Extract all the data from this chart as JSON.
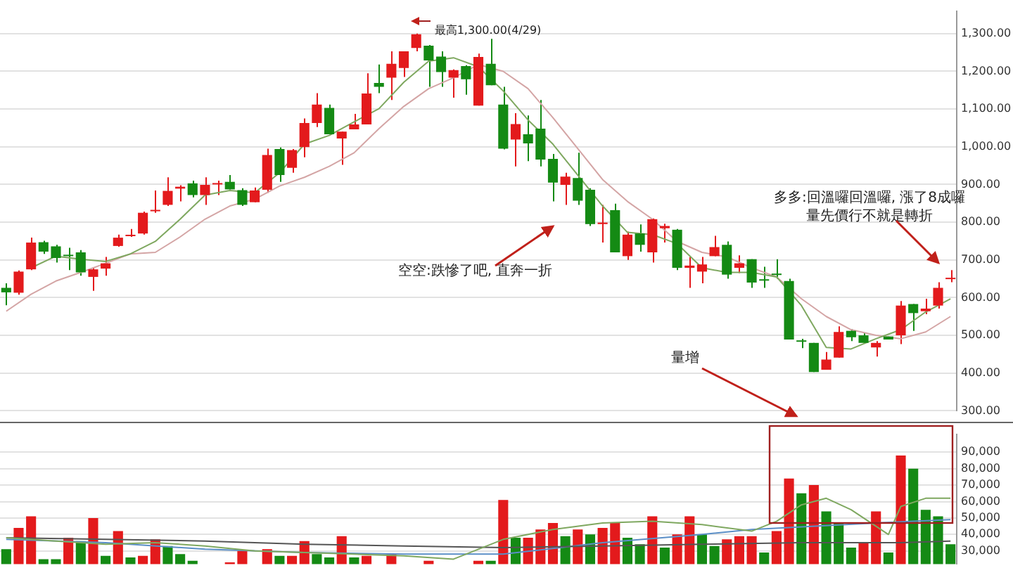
{
  "chart_data": [
    {
      "type": "candlestick",
      "tick_labels": "y",
      "grid": "y",
      "categories": [
        null,
        null,
        null,
        null,
        null,
        null,
        null,
        null,
        null,
        null,
        null,
        null,
        null,
        null,
        null,
        null,
        null,
        null,
        null,
        null,
        null,
        null,
        null,
        null,
        null,
        null,
        null,
        null,
        null,
        null,
        null,
        null,
        null,
        null,
        null,
        null,
        null,
        null,
        null,
        null,
        null,
        null,
        null,
        null,
        null,
        null,
        null,
        null,
        null,
        null,
        null,
        null,
        null,
        null,
        null,
        null,
        null,
        null,
        null,
        null,
        null,
        null,
        null,
        null,
        null,
        null,
        null,
        null,
        null,
        null,
        null,
        null,
        null,
        null,
        null,
        null,
        null
      ],
      "ohlc": [
        [
          626,
          638,
          580,
          614
        ],
        [
          613,
          672,
          608,
          669
        ],
        [
          675,
          759,
          673,
          746
        ],
        [
          747,
          751,
          716,
          722
        ],
        [
          736,
          740,
          693,
          705
        ],
        [
          712,
          732,
          673,
          710
        ],
        [
          720,
          726,
          658,
          667
        ],
        [
          655,
          680,
          618,
          675
        ],
        [
          677,
          708,
          658,
          691
        ],
        [
          737,
          767,
          735,
          759
        ],
        [
          763,
          782,
          761,
          764
        ],
        [
          770,
          828,
          767,
          825
        ],
        [
          829,
          884,
          825,
          831
        ],
        [
          846,
          919,
          843,
          883
        ],
        [
          889,
          898,
          855,
          894
        ],
        [
          903,
          910,
          866,
          872
        ],
        [
          872,
          919,
          846,
          899
        ],
        [
          900,
          910,
          872,
          902
        ],
        [
          907,
          925,
          887,
          887
        ],
        [
          885,
          890,
          843,
          846
        ],
        [
          853,
          892,
          853,
          884
        ],
        [
          886,
          995,
          878,
          978
        ],
        [
          994,
          998,
          907,
          925
        ],
        [
          944,
          994,
          931,
          991
        ],
        [
          999,
          1075,
          972,
          1063
        ],
        [
          1063,
          1142,
          1052,
          1112
        ],
        [
          1103,
          1112,
          1033,
          1033
        ],
        [
          1022,
          1040,
          952,
          1040
        ],
        [
          1046,
          1087,
          1046,
          1059
        ],
        [
          1059,
          1195,
          1059,
          1141
        ],
        [
          1169,
          1218,
          1142,
          1159
        ],
        [
          1183,
          1253,
          1124,
          1220
        ],
        [
          1209,
          1253,
          1185,
          1253
        ],
        [
          1262,
          1300,
          1253,
          1298
        ],
        [
          1268,
          1270,
          1159,
          1229
        ],
        [
          1239,
          1253,
          1159,
          1198
        ],
        [
          1183,
          1205,
          1130,
          1203
        ],
        [
          1214,
          1216,
          1138,
          1179
        ],
        [
          1109,
          1247,
          1109,
          1238
        ],
        [
          1220,
          1286,
          1163,
          1163
        ],
        [
          1112,
          1159,
          993,
          995
        ],
        [
          1019,
          1089,
          948,
          1060
        ],
        [
          1033,
          1083,
          962,
          1009
        ],
        [
          1048,
          1124,
          948,
          966
        ],
        [
          968,
          981,
          855,
          905
        ],
        [
          899,
          931,
          846,
          921
        ],
        [
          917,
          984,
          846,
          857
        ],
        [
          886,
          890,
          790,
          795
        ],
        [
          795,
          846,
          746,
          799
        ],
        [
          832,
          849,
          720,
          720
        ],
        [
          710,
          775,
          700,
          767
        ],
        [
          770,
          794,
          722,
          740
        ],
        [
          720,
          810,
          693,
          808
        ],
        [
          784,
          796,
          746,
          790
        ],
        [
          780,
          782,
          673,
          679
        ],
        [
          679,
          708,
          626,
          685
        ],
        [
          669,
          708,
          638,
          688
        ],
        [
          710,
          764,
          710,
          734
        ],
        [
          740,
          749,
          650,
          661
        ],
        [
          679,
          712,
          665,
          691
        ],
        [
          702,
          702,
          626,
          640
        ],
        [
          647,
          682,
          626,
          645
        ],
        [
          662,
          702,
          650,
          660
        ],
        [
          644,
          650,
          489,
          489
        ],
        [
          485,
          491,
          466,
          483
        ],
        [
          480,
          480,
          403,
          403
        ],
        [
          409,
          456,
          409,
          436
        ],
        [
          441,
          524,
          441,
          509
        ],
        [
          512,
          517,
          485,
          495
        ],
        [
          500,
          507,
          480,
          480
        ],
        [
          468,
          485,
          444,
          480
        ],
        [
          497,
          497,
          489,
          489
        ],
        [
          500,
          591,
          477,
          579
        ],
        [
          583,
          583,
          512,
          559
        ],
        [
          564,
          597,
          556,
          571
        ],
        [
          579,
          641,
          571,
          626
        ],
        [
          649,
          673,
          641,
          652
        ]
      ],
      "colors": [
        "#148a14",
        "#e31a1c",
        "#e31a1c",
        "#148a14",
        "#148a14",
        "#148a14",
        "#148a14",
        "#e31a1c",
        "#e31a1c",
        "#e31a1c",
        "#e31a1c",
        "#e31a1c",
        "#e31a1c",
        "#e31a1c",
        "#e31a1c",
        "#148a14",
        "#e31a1c",
        "#e31a1c",
        "#148a14",
        "#148a14",
        "#e31a1c",
        "#e31a1c",
        "#148a14",
        "#e31a1c",
        "#e31a1c",
        "#e31a1c",
        "#148a14",
        "#e31a1c",
        "#e31a1c",
        "#e31a1c",
        "#148a14",
        "#e31a1c",
        "#e31a1c",
        "#e31a1c",
        "#148a14",
        "#148a14",
        "#e31a1c",
        "#148a14",
        "#e31a1c",
        "#148a14",
        "#148a14",
        "#e31a1c",
        "#148a14",
        "#148a14",
        "#148a14",
        "#e31a1c",
        "#148a14",
        "#148a14",
        "#e31a1c",
        "#148a14",
        "#e31a1c",
        "#148a14",
        "#e31a1c",
        "#e31a1c",
        "#148a14",
        "#e31a1c",
        "#e31a1c",
        "#e31a1c",
        "#148a14",
        "#e31a1c",
        "#148a14",
        "#148a14",
        "#148a14",
        "#148a14",
        "#148a14",
        "#148a14",
        "#e31a1c",
        "#e31a1c",
        "#148a14",
        "#148a14",
        "#e31a1c",
        "#148a14",
        "#e31a1c",
        "#148a14",
        "#e31a1c",
        "#e31a1c",
        "#e31a1c"
      ],
      "series": [
        {
          "type": "line",
          "color": "#7fa860",
          "values": [
            null,
            null,
            679,
            null,
            710,
            null,
            702,
            null,
            696,
            null,
            716,
            null,
            749,
            null,
            808,
            null,
            872,
            null,
            884,
            null,
            878,
            null,
            931,
            null,
            1007,
            null,
            1030,
            null,
            1066,
            null,
            1101,
            null,
            1171,
            null,
            1227,
            null,
            1236,
            null,
            1212,
            null,
            1148,
            null,
            1071,
            null,
            1007,
            null,
            925,
            null,
            843,
            null,
            773,
            null,
            767,
            null,
            743,
            null,
            679,
            null,
            667,
            null,
            667,
            null,
            655,
            null,
            579,
            null,
            468,
            null,
            464,
            null,
            491,
            null,
            515,
            null,
            562,
            null,
            597
          ]
        },
        {
          "type": "line",
          "color": "#d4a5a5",
          "values": [
            564,
            null,
            609,
            null,
            644,
            null,
            667,
            null,
            691,
            null,
            716,
            null,
            720,
            null,
            761,
            null,
            808,
            null,
            843,
            null,
            861,
            null,
            896,
            null,
            919,
            null,
            948,
            null,
            984,
            null,
            1048,
            null,
            1107,
            null,
            1154,
            null,
            1183,
            null,
            1218,
            null,
            1200,
            null,
            1154,
            null,
            1077,
            null,
            995,
            null,
            913,
            null,
            855,
            null,
            808,
            null,
            749,
            null,
            720,
            null,
            708,
            null,
            679,
            null,
            655,
            null,
            597,
            null,
            550,
            null,
            515,
            null,
            500,
            null,
            491,
            null,
            509,
            null,
            550
          ]
        }
      ],
      "ylim": [
        300,
        1360
      ],
      "yticks": [
        {
          "value": 300,
          "label": "300.00"
        },
        {
          "value": 400,
          "label": "400.00"
        },
        {
          "value": 500,
          "label": "500.00"
        },
        {
          "value": 600,
          "label": "600.00"
        },
        {
          "value": 700,
          "label": "700.00"
        },
        {
          "value": 800,
          "label": "800.00"
        },
        {
          "value": 900,
          "label": "900.00"
        },
        {
          "value": 1000,
          "label": "1,000.00"
        },
        {
          "value": 1100,
          "label": "1,100.00"
        },
        {
          "value": 1200,
          "label": "1,200.00"
        },
        {
          "value": 1300,
          "label": "1,300.00"
        }
      ],
      "annotations": [
        "最高1,300.00(4/29)",
        "空空:跌慘了吧, 直奔一折",
        "多多:回溫囉回溫囉, 漲了8成囉",
        "量先價行不就是轉折",
        "量增"
      ]
    },
    {
      "type": "bar",
      "tick_labels": "y",
      "grid": "y",
      "categories": [
        null,
        null,
        null,
        null,
        null,
        null,
        null,
        null,
        null,
        null,
        null,
        null,
        null,
        null,
        null,
        null,
        null,
        null,
        null,
        null,
        null,
        null,
        null,
        null,
        null,
        null,
        null,
        null,
        null,
        null,
        null,
        null,
        null,
        null,
        null,
        null,
        null,
        null,
        null,
        null,
        null,
        null,
        null,
        null,
        null,
        null,
        null,
        null,
        null,
        null,
        null,
        null,
        null,
        null,
        null,
        null,
        null,
        null,
        null,
        null,
        null,
        null,
        null,
        null,
        null,
        null,
        null,
        null,
        null,
        null,
        null,
        null,
        null,
        null,
        null,
        null,
        null
      ],
      "series": [
        {
          "type": "bar",
          "colors": [
            "#148a14",
            "#e31a1c",
            "#e31a1c",
            "#148a14",
            "#148a14",
            "#e31a1c",
            "#148a14",
            "#e31a1c",
            "#148a14",
            "#e31a1c",
            "#148a14",
            "#e31a1c",
            "#e31a1c",
            "#148a14",
            "#148a14",
            "#148a14",
            "#148a14",
            "#148a14",
            "#e31a1c",
            "#e31a1c",
            "#e31a1c",
            "#e31a1c",
            "#148a14",
            "#e31a1c",
            "#e31a1c",
            "#148a14",
            "#148a14",
            "#e31a1c",
            "#148a14",
            "#e31a1c",
            "#e31a1c",
            "#e31a1c",
            "#e31a1c",
            "#e31a1c",
            "#e31a1c",
            "#e31a1c",
            "#e31a1c",
            "#e31a1c",
            "#e31a1c",
            "#148a14",
            "#e31a1c",
            "#148a14",
            "#e31a1c",
            "#e31a1c",
            "#e31a1c",
            "#148a14",
            "#e31a1c",
            "#148a14",
            "#e31a1c",
            "#e31a1c",
            "#148a14",
            "#148a14",
            "#e31a1c",
            "#148a14",
            "#e31a1c",
            "#e31a1c",
            "#148a14",
            "#148a14",
            "#e31a1c",
            "#e31a1c",
            "#e31a1c",
            "#148a14",
            "#e31a1c",
            "#e31a1c",
            "#148a14",
            "#e31a1c",
            "#148a14",
            "#148a14",
            "#148a14",
            "#e31a1c",
            "#e31a1c",
            "#148a14",
            "#e31a1c",
            "#148a14",
            "#148a14",
            "#148a14",
            "#148a14"
          ],
          "values": [
            31000,
            44000,
            51000,
            25000,
            25000,
            38000,
            36000,
            50000,
            27000,
            42000,
            26000,
            27000,
            37000,
            33000,
            28000,
            24000,
            null,
            null,
            23000,
            30000,
            null,
            31000,
            27000,
            27000,
            36000,
            28000,
            26000,
            39000,
            26000,
            27000,
            null,
            28000,
            null,
            null,
            24000,
            null,
            null,
            null,
            24000,
            24000,
            61000,
            38000,
            38000,
            43000,
            47000,
            39000,
            43000,
            40000,
            44000,
            47000,
            38000,
            34000,
            51000,
            32000,
            40000,
            51000,
            40000,
            33000,
            37000,
            39000,
            39000,
            29000,
            42000,
            74000,
            65000,
            70000,
            54000,
            47000,
            32000,
            35000,
            54000,
            29000,
            88000,
            80000,
            55000,
            51000,
            34000
          ]
        },
        {
          "type": "line",
          "color": "#7fa860",
          "values": [
            38000,
            null,
            null,
            null,
            36000,
            null,
            null,
            null,
            34000,
            null,
            null,
            null,
            35000,
            null,
            null,
            null,
            33000,
            null,
            null,
            null,
            30000,
            null,
            null,
            null,
            29000,
            null,
            null,
            null,
            28000,
            null,
            null,
            null,
            27000,
            null,
            null,
            null,
            25000,
            null,
            null,
            null,
            37000,
            null,
            null,
            null,
            43000,
            null,
            null,
            null,
            47000,
            null,
            null,
            null,
            48000,
            null,
            null,
            null,
            46000,
            null,
            null,
            null,
            42000,
            null,
            48000,
            null,
            58000,
            null,
            62000,
            null,
            55000,
            null,
            45000,
            40000,
            57000,
            null,
            62000,
            null,
            62000
          ]
        },
        {
          "type": "line",
          "color": "#555555",
          "values": [
            38000,
            null,
            null,
            null,
            null,
            null,
            null,
            null,
            37000,
            null,
            null,
            null,
            null,
            null,
            null,
            null,
            36000,
            null,
            null,
            null,
            null,
            null,
            null,
            null,
            34000,
            null,
            null,
            null,
            null,
            null,
            null,
            null,
            33000,
            null,
            null,
            null,
            null,
            null,
            null,
            null,
            32000,
            null,
            null,
            null,
            null,
            null,
            null,
            null,
            33000,
            null,
            null,
            null,
            null,
            null,
            null,
            null,
            34000,
            null,
            null,
            null,
            null,
            null,
            null,
            null,
            35000,
            null,
            null,
            null,
            null,
            null,
            null,
            null,
            35000,
            null,
            null,
            null,
            36000
          ]
        },
        {
          "type": "line",
          "color": "#5b8fc7",
          "values": [
            37000,
            null,
            null,
            null,
            null,
            null,
            null,
            null,
            35000,
            null,
            null,
            null,
            null,
            null,
            null,
            null,
            31000,
            null,
            null,
            null,
            null,
            null,
            null,
            null,
            29000,
            null,
            null,
            null,
            null,
            null,
            null,
            null,
            28000,
            null,
            null,
            null,
            null,
            null,
            null,
            null,
            28000,
            null,
            null,
            null,
            null,
            null,
            null,
            null,
            35000,
            null,
            null,
            null,
            null,
            null,
            null,
            null,
            40000,
            null,
            null,
            null,
            43000,
            null,
            null,
            null,
            null,
            null,
            null,
            null,
            null,
            null,
            47000,
            null,
            null,
            null,
            null,
            null,
            49000
          ]
        }
      ],
      "ylim": [
        22000,
        101000
      ],
      "yticks": [
        {
          "value": 30000,
          "label": "30,000"
        },
        {
          "value": 40000,
          "label": "40,000"
        },
        {
          "value": 50000,
          "label": "50,000"
        },
        {
          "value": 60000,
          "label": "60,000"
        },
        {
          "value": 70000,
          "label": "70,000"
        },
        {
          "value": 80000,
          "label": "80,000"
        },
        {
          "value": 90000,
          "label": "90,000"
        }
      ]
    }
  ]
}
